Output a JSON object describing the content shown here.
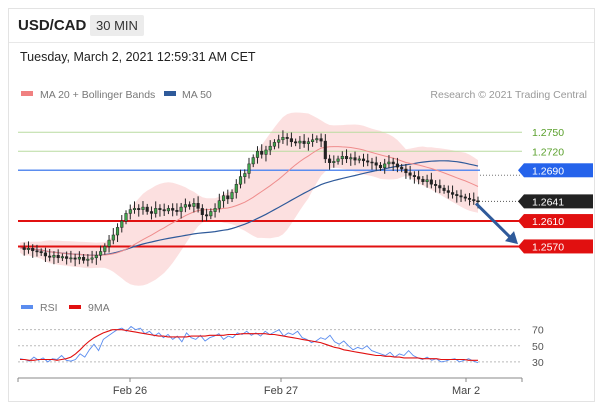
{
  "header": {
    "symbol": "USD/CAD",
    "timeframe": "30 MIN",
    "timestamp": "Tuesday, March 2, 2021 12:59:31 AM CET"
  },
  "chart_data": [
    {
      "type": "candlestick",
      "title": "USD/CAD",
      "attribution": "Research © 2021 Trading Central",
      "legend": [
        {
          "name": "MA 20 + Bollinger Bands",
          "color": "#f08080"
        },
        {
          "name": "MA 50",
          "color": "#2f5a9a"
        }
      ],
      "x_ticks": [
        "Feb 26",
        "Feb 27",
        "Mar 2"
      ],
      "ylim": [
        1.2525,
        1.2785
      ],
      "levels": [
        {
          "value": 1.275,
          "label": "1.2750",
          "kind": "target",
          "color": "#5aa02c"
        },
        {
          "value": 1.272,
          "label": "1.2720",
          "kind": "target",
          "color": "#5aa02c"
        },
        {
          "value": 1.269,
          "label": "1.2690",
          "kind": "pivot",
          "color": "#2563eb"
        },
        {
          "value": 1.2641,
          "label": "1.2641",
          "kind": "last",
          "color": "#222222"
        },
        {
          "value": 1.261,
          "label": "1.2610",
          "kind": "support",
          "color": "#e11010"
        },
        {
          "value": 1.257,
          "label": "1.2570",
          "kind": "support",
          "color": "#e11010"
        }
      ],
      "close_path": [
        1.2568,
        1.2565,
        1.2567,
        1.2563,
        1.2562,
        1.256,
        1.2555,
        1.2553,
        1.2556,
        1.2552,
        1.2554,
        1.2551,
        1.2552,
        1.255,
        1.2553,
        1.2548,
        1.255,
        1.2552,
        1.2556,
        1.2562,
        1.257,
        1.258,
        1.2588,
        1.26,
        1.261,
        1.2622,
        1.2628,
        1.263,
        1.2628,
        1.2632,
        1.2625,
        1.2622,
        1.263,
        1.2628,
        1.2626,
        1.263,
        1.2627,
        1.2625,
        1.2632,
        1.2636,
        1.2633,
        1.2638,
        1.263,
        1.262,
        1.2618,
        1.2625,
        1.263,
        1.2642,
        1.265,
        1.2645,
        1.2655,
        1.2668,
        1.268,
        1.2685,
        1.27,
        1.271,
        1.272,
        1.2715,
        1.2722,
        1.2728,
        1.2734,
        1.2738,
        1.2742,
        1.274,
        1.2735,
        1.2733,
        1.2736,
        1.2732,
        1.2735,
        1.2738,
        1.274,
        1.2736,
        1.2708,
        1.2702,
        1.2704,
        1.2708,
        1.2712,
        1.2708,
        1.271,
        1.2706,
        1.2708,
        1.2705,
        1.2703,
        1.2702,
        1.2698,
        1.2694,
        1.27,
        1.2703,
        1.27,
        1.2695,
        1.2692,
        1.2686,
        1.2682,
        1.268,
        1.2676,
        1.2672,
        1.2675,
        1.2668,
        1.2666,
        1.2662,
        1.2658,
        1.2655,
        1.2652,
        1.265,
        1.2648,
        1.2646,
        1.2644,
        1.2642,
        1.2641
      ],
      "forecast_arrow": {
        "from": 1.2641,
        "to": 1.258
      }
    },
    {
      "type": "line",
      "title": "RSI",
      "legend": [
        {
          "name": "RSI",
          "color": "#5b8def"
        },
        {
          "name": "9MA",
          "color": "#e11010"
        }
      ],
      "y_ticks": [
        70,
        50,
        30
      ],
      "ylim": [
        20,
        82
      ],
      "series": [
        {
          "name": "RSI",
          "values": [
            34,
            33,
            31,
            36,
            32,
            35,
            30,
            34,
            33,
            38,
            32,
            31,
            33,
            40,
            36,
            45,
            52,
            44,
            58,
            62,
            66,
            70,
            72,
            68,
            74,
            70,
            72,
            65,
            68,
            62,
            66,
            60,
            64,
            58,
            62,
            55,
            66,
            60,
            58,
            63,
            56,
            60,
            62,
            65,
            58,
            62,
            60,
            66,
            64,
            68,
            63,
            66,
            62,
            68,
            64,
            67,
            70,
            62,
            66,
            64,
            68,
            60,
            58,
            54,
            56,
            60,
            58,
            63,
            55,
            52,
            56,
            50,
            45,
            48,
            46,
            50,
            44,
            42,
            40,
            38,
            42,
            36,
            40,
            38,
            44,
            38,
            35,
            33,
            36,
            32,
            34,
            30,
            31,
            33,
            34,
            30,
            32,
            34,
            31,
            29
          ]
        },
        {
          "name": "9MA",
          "values": [
            33,
            33,
            32,
            32,
            33,
            33,
            33,
            33,
            32,
            33,
            34,
            36,
            40,
            45,
            51,
            56,
            60,
            63,
            66,
            68,
            70,
            70,
            70,
            69,
            68,
            67,
            66,
            65,
            64,
            63,
            62,
            62,
            61,
            61,
            61,
            61,
            61,
            62,
            62,
            62,
            62,
            63,
            63,
            63,
            63,
            64,
            64,
            64,
            65,
            65,
            65,
            65,
            65,
            65,
            64,
            64,
            63,
            62,
            61,
            60,
            59,
            58,
            57,
            56,
            55,
            54,
            52,
            50,
            48,
            47,
            45,
            44,
            43,
            42,
            41,
            40,
            39,
            38,
            38,
            37,
            37,
            36,
            36,
            35,
            35,
            35,
            35,
            34,
            34,
            34,
            34,
            33,
            33,
            33,
            33,
            33,
            33,
            32,
            32,
            32
          ]
        }
      ]
    }
  ]
}
